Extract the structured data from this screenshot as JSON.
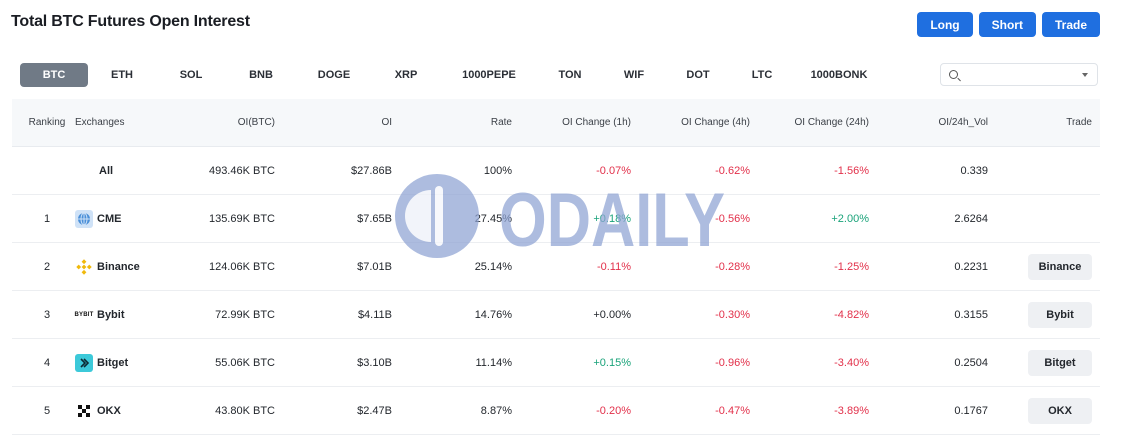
{
  "title": "Total BTC Futures Open Interest",
  "actions": {
    "long": "Long",
    "short": "Short",
    "trade": "Trade"
  },
  "tabs": [
    {
      "label": "BTC",
      "width": 68,
      "active": true
    },
    {
      "label": "ETH",
      "width": 68
    },
    {
      "label": "SOL",
      "width": 70
    },
    {
      "label": "BNB",
      "width": 70
    },
    {
      "label": "DOGE",
      "width": 76
    },
    {
      "label": "XRP",
      "width": 68
    },
    {
      "label": "1000PEPE",
      "width": 98
    },
    {
      "label": "TON",
      "width": 64
    },
    {
      "label": "WIF",
      "width": 64
    },
    {
      "label": "DOT",
      "width": 64
    },
    {
      "label": "LTC",
      "width": 64
    },
    {
      "label": "1000BONK",
      "width": 90
    }
  ],
  "search": {
    "placeholder": ""
  },
  "columns": {
    "ranking": "Ranking",
    "exchanges": "Exchanges",
    "oi_btc": "OI(BTC)",
    "oi": "OI",
    "rate": "Rate",
    "change_1h": "OI Change (1h)",
    "change_4h": "OI Change (4h)",
    "change_24h": "OI Change (24h)",
    "oi_vol": "OI/24h_Vol",
    "trade": "Trade"
  },
  "rows": [
    {
      "rank": "",
      "exchange": "All",
      "oi_btc": "493.46K BTC",
      "oi": "$27.86B",
      "rate": "100%",
      "c1h": "-0.07%",
      "c4h": "-0.62%",
      "c24h": "-1.56%",
      "vol": "0.339",
      "trade": ""
    },
    {
      "rank": "1",
      "exchange": "CME",
      "oi_btc": "135.69K BTC",
      "oi": "$7.65B",
      "rate": "27.45%",
      "c1h": "+0.18%",
      "c4h": "-0.56%",
      "c24h": "+2.00%",
      "vol": "2.6264",
      "trade": "",
      "logo": "cme"
    },
    {
      "rank": "2",
      "exchange": "Binance",
      "oi_btc": "124.06K BTC",
      "oi": "$7.01B",
      "rate": "25.14%",
      "c1h": "-0.11%",
      "c4h": "-0.28%",
      "c24h": "-1.25%",
      "vol": "0.2231",
      "trade": "Binance",
      "logo": "binance"
    },
    {
      "rank": "3",
      "exchange": "Bybit",
      "oi_btc": "72.99K BTC",
      "oi": "$4.11B",
      "rate": "14.76%",
      "c1h": "+0.00%",
      "c4h": "-0.30%",
      "c24h": "-4.82%",
      "vol": "0.3155",
      "trade": "Bybit",
      "logo": "bybit"
    },
    {
      "rank": "4",
      "exchange": "Bitget",
      "oi_btc": "55.06K BTC",
      "oi": "$3.10B",
      "rate": "11.14%",
      "c1h": "+0.15%",
      "c4h": "-0.96%",
      "c24h": "-3.40%",
      "vol": "0.2504",
      "trade": "Bitget",
      "logo": "bitget"
    },
    {
      "rank": "5",
      "exchange": "OKX",
      "oi_btc": "43.80K BTC",
      "oi": "$2.47B",
      "rate": "8.87%",
      "c1h": "-0.20%",
      "c4h": "-0.47%",
      "c24h": "-3.89%",
      "vol": "0.1767",
      "trade": "OKX",
      "logo": "okx"
    }
  ],
  "logo_text": {
    "bybit": "BYBIT"
  },
  "watermark": "ODAILY",
  "colors": {
    "accent": "#1f6fe0",
    "negative": "#e2304a",
    "positive": "#1aa37a",
    "tab_active": "#707a86",
    "watermark": "#8ea3d3"
  }
}
